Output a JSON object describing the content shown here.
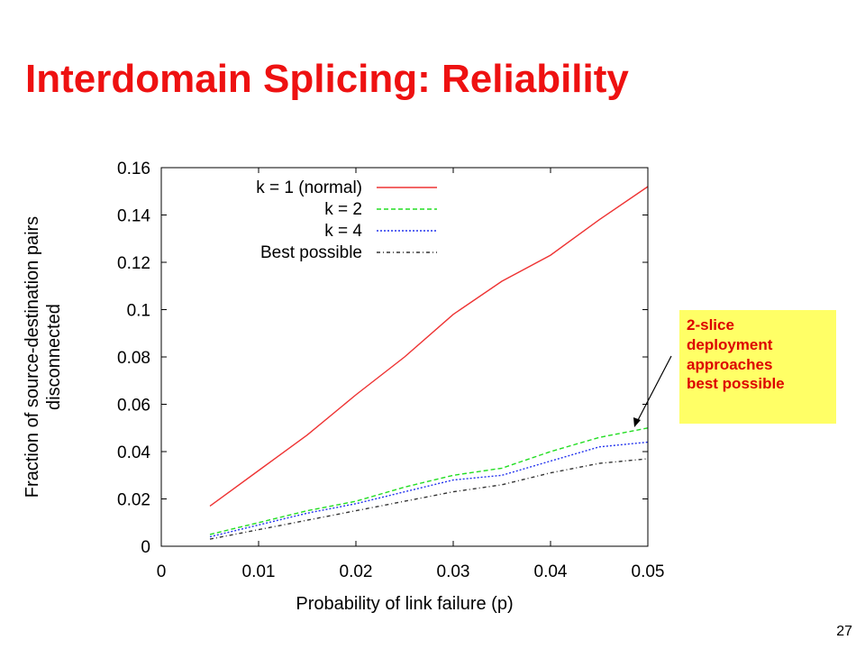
{
  "slide": {
    "title": "Interdomain Splicing: Reliability",
    "page_number": "27"
  },
  "callout": {
    "lines": [
      "2-slice",
      "deployment",
      "approaches",
      "best possible"
    ]
  },
  "colors": {
    "title": "#ee1111",
    "callout_bg": "#ffff66",
    "callout_text": "#dd0000"
  },
  "chart_data": {
    "type": "line",
    "xlabel": "Probability of link failure (p)",
    "ylabel_lines": [
      "Fraction of source-destination pairs",
      "disconnected"
    ],
    "xlim": [
      0,
      0.05
    ],
    "ylim": [
      0,
      0.16
    ],
    "x_ticks": [
      "0",
      "0.01",
      "0.02",
      "0.03",
      "0.04",
      "0.05"
    ],
    "y_ticks": [
      "0",
      "0.02",
      "0.04",
      "0.06",
      "0.08",
      "0.1",
      "0.12",
      "0.14",
      "0.16"
    ],
    "legend_position": "top-left",
    "grid": false,
    "series": [
      {
        "name": "k = 1 (normal)",
        "color": "#ee3333",
        "dash": "solid",
        "x": [
          0.005,
          0.01,
          0.015,
          0.02,
          0.025,
          0.03,
          0.035,
          0.04,
          0.045,
          0.05
        ],
        "values": [
          0.017,
          0.032,
          0.047,
          0.064,
          0.08,
          0.098,
          0.112,
          0.123,
          0.138,
          0.152
        ]
      },
      {
        "name": "k = 2",
        "color": "#22dd22",
        "dash": "dashed",
        "x": [
          0.005,
          0.01,
          0.015,
          0.02,
          0.025,
          0.03,
          0.035,
          0.04,
          0.045,
          0.05
        ],
        "values": [
          0.005,
          0.01,
          0.015,
          0.019,
          0.025,
          0.03,
          0.033,
          0.04,
          0.046,
          0.05
        ]
      },
      {
        "name": "k = 4",
        "color": "#2233ee",
        "dash": "dotted",
        "x": [
          0.005,
          0.01,
          0.015,
          0.02,
          0.025,
          0.03,
          0.035,
          0.04,
          0.045,
          0.05
        ],
        "values": [
          0.004,
          0.009,
          0.014,
          0.018,
          0.023,
          0.028,
          0.03,
          0.036,
          0.042,
          0.044
        ]
      },
      {
        "name": "Best possible",
        "color": "#333333",
        "dash": "dashdot",
        "x": [
          0.005,
          0.01,
          0.015,
          0.02,
          0.025,
          0.03,
          0.035,
          0.04,
          0.045,
          0.05
        ],
        "values": [
          0.003,
          0.007,
          0.011,
          0.015,
          0.019,
          0.023,
          0.026,
          0.031,
          0.035,
          0.037
        ]
      }
    ]
  }
}
